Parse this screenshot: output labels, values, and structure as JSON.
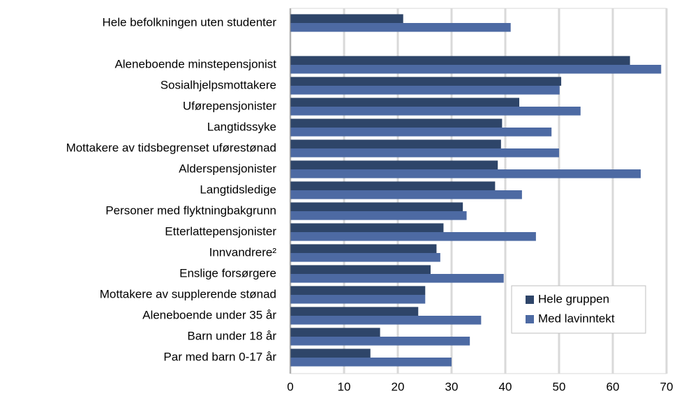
{
  "chart_data": {
    "type": "hbar",
    "categories": [
      "Hele befolkningen uten studenter",
      null,
      "Aleneboende minstepensjonist",
      "Sosialhjelpsmottakere",
      "Uførepensjonister",
      "Langtidssyke",
      "Mottakere av tidsbegrenset uførestønad",
      "Alderspensjonister",
      "Langtidsledige",
      "Personer med flyktningbakgrunn",
      "Etterlattepensjonister",
      "Innvandrere²",
      "Enslige forsørgere",
      "Mottakere av supplerende stønad",
      "Aleneboende under 35 år",
      "Barn under 18 år",
      "Par med barn 0-17 år"
    ],
    "series": [
      {
        "name": "Hele gruppen",
        "color": "#2e4569",
        "values": [
          21.0,
          null,
          63.2,
          50.4,
          42.6,
          39.4,
          39.2,
          38.6,
          38.1,
          32.1,
          28.5,
          27.2,
          26.1,
          25.1,
          23.8,
          16.7,
          14.9
        ]
      },
      {
        "name": "Med lavinntekt",
        "color": "#4d6aa3",
        "values": [
          41.0,
          null,
          69.0,
          50.1,
          54.0,
          48.6,
          50.0,
          65.2,
          43.1,
          32.8,
          45.7,
          27.9,
          39.7,
          25.1,
          35.5,
          33.4,
          30.0
        ]
      }
    ],
    "xlim": [
      0,
      70
    ],
    "xticks": [
      0,
      10,
      20,
      30,
      40,
      50,
      60,
      70
    ],
    "grid": true,
    "legend": "lower right"
  }
}
